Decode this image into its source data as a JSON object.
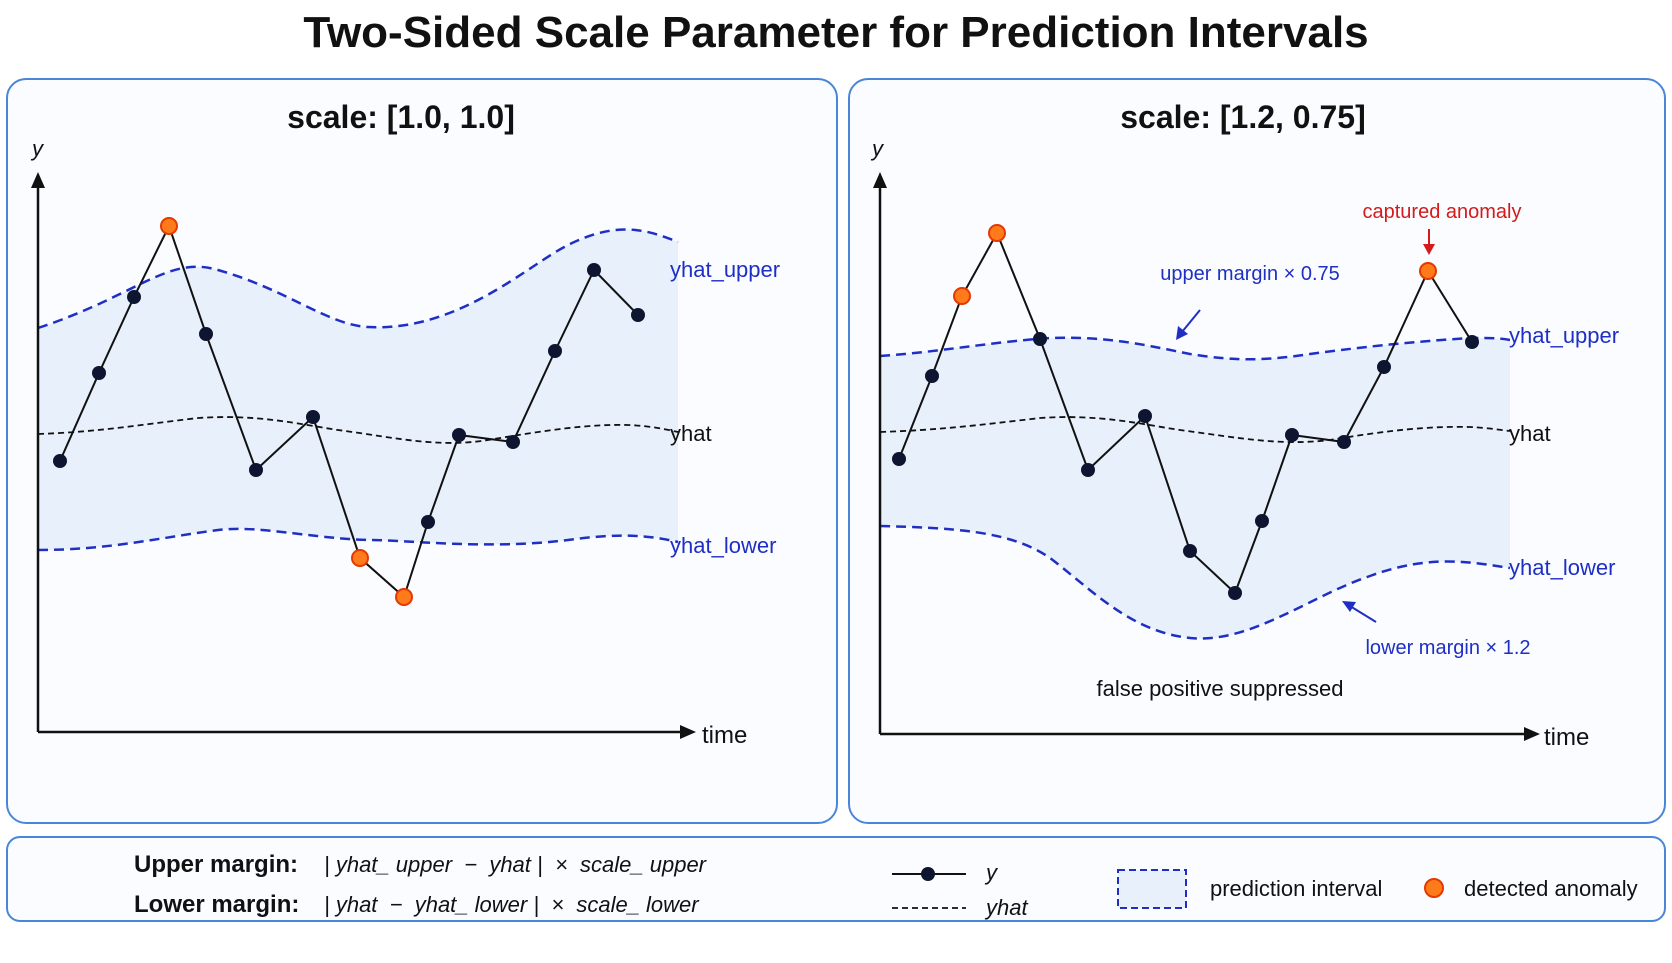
{
  "title": "Two-Sided Scale Parameter for Prediction Intervals",
  "panels": [
    {
      "title": "scale: [1.0, 1.0]",
      "y_axis_label": "y",
      "x_axis_label": "time",
      "labels": {
        "upper": "yhat_upper",
        "yhat": "yhat",
        "lower": "yhat_lower"
      }
    },
    {
      "title": "scale: [1.2, 0.75]",
      "y_axis_label": "y",
      "x_axis_label": "time",
      "labels": {
        "upper": "yhat_upper",
        "yhat": "yhat",
        "lower": "yhat_lower"
      },
      "annotations": {
        "captured": "captured anomaly",
        "upper_margin": "upper margin × 0.75",
        "lower_margin": "lower margin × 1.2",
        "false_positive": "false positive suppressed"
      }
    }
  ],
  "legend": {
    "upper_margin_label": "Upper margin:",
    "upper_margin_formula": "| yhat_ upper  −  yhat |  ×  scale_ upper",
    "lower_margin_label": "Lower margin:",
    "lower_margin_formula": "| yhat  −  yhat_ lower |  ×  scale_ lower",
    "y_series": "y",
    "yhat_series": "yhat",
    "interval": "prediction interval",
    "anomaly": "detected anomaly"
  },
  "colors": {
    "interval_line": "#1f2fc4",
    "interval_fill": "#e8f0fb",
    "point": "#0d1530",
    "anomaly_fill": "#ff7a1a",
    "anomaly_stroke": "#e23a00",
    "annotation_red": "#d41a1a",
    "annotation_blue": "#1f2fc4",
    "panel_border": "#4a86d8"
  },
  "icons": {
    "y_axis_arrow": "arrow-up-icon",
    "x_axis_arrow": "arrow-right-icon",
    "captured_arrow": "arrow-down-icon",
    "margin_arrow": "diagonal-arrow-icon"
  }
}
